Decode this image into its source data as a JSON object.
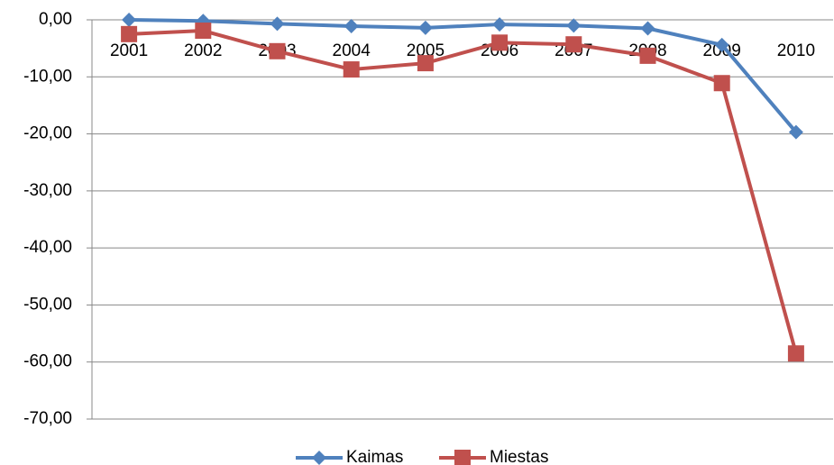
{
  "chart_data": {
    "type": "line",
    "categories": [
      "2001",
      "2002",
      "2003",
      "2004",
      "2005",
      "2006",
      "2007",
      "2008",
      "2009",
      "2010"
    ],
    "series": [
      {
        "name": "Kaimas",
        "color": "#4f81bd",
        "marker": "diamond",
        "values": [
          0,
          -0.2,
          -0.7,
          -1.1,
          -1.4,
          -0.8,
          -1.0,
          -1.5,
          -4.4,
          -19.7
        ]
      },
      {
        "name": "Miestas",
        "color": "#c0504d",
        "marker": "square",
        "values": [
          -2.5,
          -1.9,
          -5.5,
          -8.7,
          -7.6,
          -4.0,
          -4.3,
          -6.3,
          -11.1,
          -58.5
        ]
      }
    ],
    "ylim": [
      -70,
      0
    ],
    "yticks": [
      {
        "value": 0,
        "label": "0,00"
      },
      {
        "value": -10,
        "label": "-10,00"
      },
      {
        "value": -20,
        "label": "-20,00"
      },
      {
        "value": -30,
        "label": "-30,00"
      },
      {
        "value": -40,
        "label": "-40,00"
      },
      {
        "value": -50,
        "label": "-50,00"
      },
      {
        "value": -60,
        "label": "-60,00"
      },
      {
        "value": -70,
        "label": "-70,00"
      }
    ],
    "grid": true,
    "legend": "bottom"
  }
}
